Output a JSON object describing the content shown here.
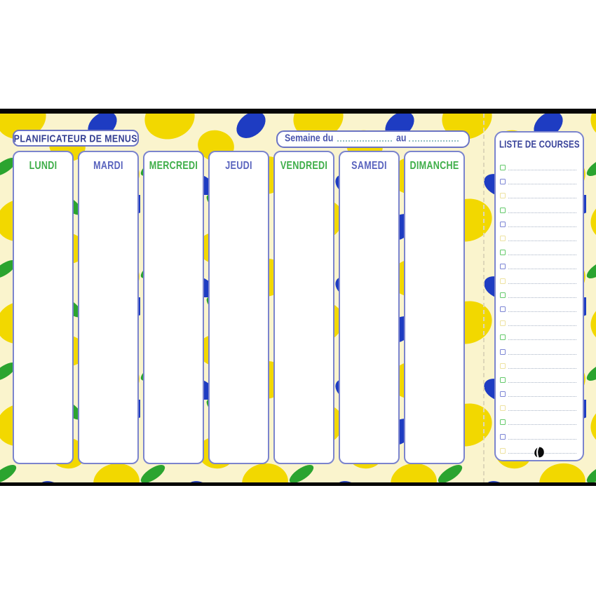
{
  "planner": {
    "title": "PLANIFICATEUR DE MENUS",
    "week": {
      "prefix": "Semaine du",
      "separator": "au"
    },
    "days": [
      {
        "label": "LUNDI",
        "color": "green"
      },
      {
        "label": "MARDI",
        "color": "blue"
      },
      {
        "label": "MERCREDI",
        "color": "green"
      },
      {
        "label": "JEUDI",
        "color": "blue"
      },
      {
        "label": "VENDREDI",
        "color": "green"
      },
      {
        "label": "SAMEDI",
        "color": "blue"
      },
      {
        "label": "DIMANCHE",
        "color": "green"
      }
    ],
    "shopping_list": {
      "title": "LISTE DE COURSES",
      "rows": [
        "green",
        "blue",
        "yellow",
        "green",
        "blue",
        "yellow",
        "green",
        "blue",
        "yellow",
        "green",
        "blue",
        "yellow",
        "green",
        "blue",
        "yellow",
        "green",
        "blue",
        "yellow",
        "green",
        "blue",
        "yellow"
      ]
    },
    "icons": {
      "logo": "brand-swoosh-icon"
    },
    "colors": {
      "cream": "#FAF4CD",
      "lemon_yellow": "#F2D800",
      "lemon_blue": "#1E3CC2",
      "leaf_green": "#2BA42F",
      "border_indigo": "#7B84CE",
      "text_navy": "#323D91",
      "day_green": "#3FAE49",
      "day_blue": "#5A64BE",
      "checkbox_green": "#63C96A",
      "checkbox_blue": "#7B84D4",
      "checkbox_yellow": "#EDE2A0",
      "list_dotted": "#A9B4C6",
      "week_dotted": "#93BFC0"
    }
  }
}
